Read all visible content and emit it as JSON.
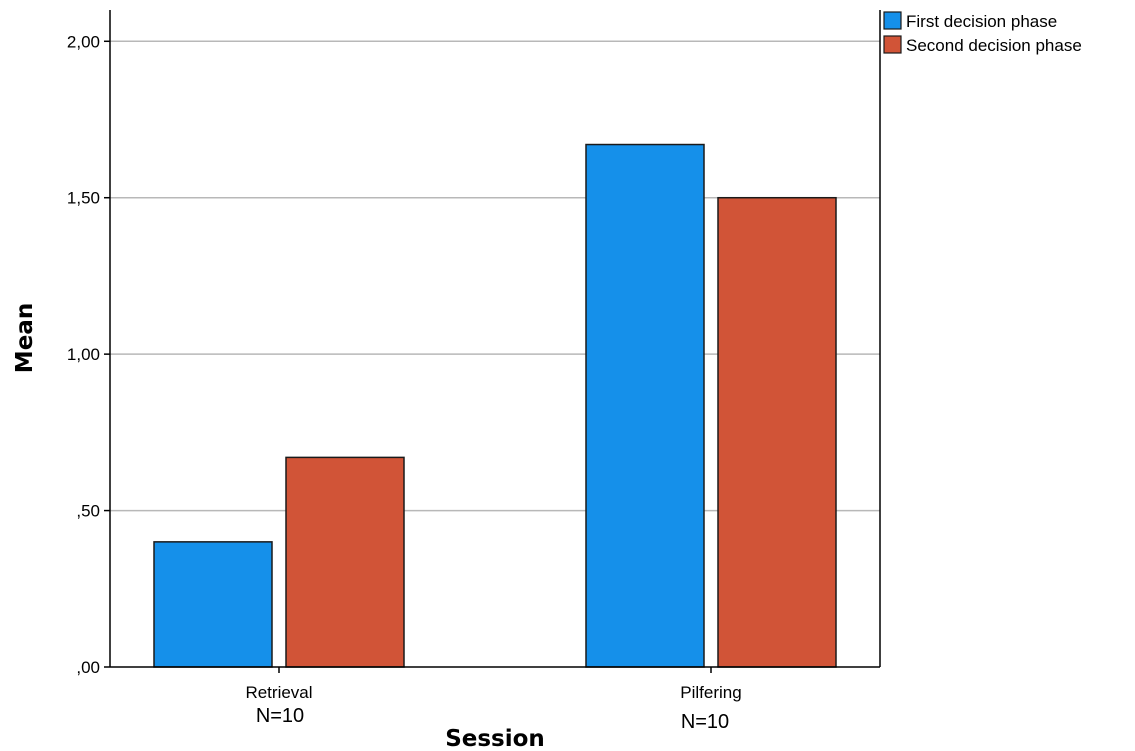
{
  "chart_data": {
    "type": "bar",
    "categories": [
      "Retrieval",
      "Pilfering"
    ],
    "category_notes": [
      "N=10",
      "N=10"
    ],
    "series": [
      {
        "name": "First decision phase",
        "values": [
          0.4,
          1.67
        ],
        "color": "#1590ea"
      },
      {
        "name": "Second decision phase",
        "values": [
          0.67,
          1.5
        ],
        "color": "#d15437"
      }
    ],
    "xlabel": "Session",
    "ylabel": "Mean",
    "ylim": [
      0,
      2.1
    ],
    "yticks": [
      0,
      0.5,
      1.0,
      1.5,
      2.0
    ],
    "ytick_labels": [
      ",00",
      ",50",
      "1,00",
      "1,50",
      "2,00"
    ],
    "grid": true,
    "legend_position": "top-right"
  }
}
